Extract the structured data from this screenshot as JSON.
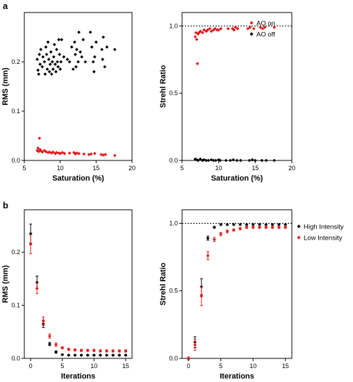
{
  "panel_labels": {
    "a": "a",
    "b": "b"
  },
  "colors": {
    "on": "#e31a1c",
    "off": "#000000",
    "reference": "#000000"
  },
  "chart_data": [
    {
      "id": "a_rms",
      "type": "scatter",
      "title": "",
      "xlabel": "Saturation (%)",
      "ylabel": "RMS (mm)",
      "xlim": [
        5,
        20
      ],
      "ylim": [
        0,
        0.3
      ],
      "xticks": [
        5,
        10,
        15,
        20
      ],
      "yticks": [
        0.0,
        0.1,
        0.2
      ],
      "ytick_labels": [
        "0.0",
        "0.1",
        "0.2"
      ],
      "grid": false,
      "legend": null,
      "series": [
        {
          "color": "#000000",
          "marker": "diamond",
          "points": [
            [
              6.8,
              0.205
            ],
            [
              6.9,
              0.183
            ],
            [
              7.0,
              0.175
            ],
            [
              7.1,
              0.215
            ],
            [
              7.2,
              0.195
            ],
            [
              7.3,
              0.225
            ],
            [
              7.5,
              0.19
            ],
            [
              7.6,
              0.21
            ],
            [
              7.8,
              0.2
            ],
            [
              7.9,
              0.175
            ],
            [
              8.0,
              0.23
            ],
            [
              8.1,
              0.215
            ],
            [
              8.2,
              0.185
            ],
            [
              8.3,
              0.24
            ],
            [
              8.4,
              0.205
            ],
            [
              8.5,
              0.18
            ],
            [
              8.6,
              0.195
            ],
            [
              8.7,
              0.22
            ],
            [
              8.8,
              0.175
            ],
            [
              8.9,
              0.2
            ],
            [
              9.0,
              0.185
            ],
            [
              9.1,
              0.21
            ],
            [
              9.2,
              0.235
            ],
            [
              9.3,
              0.195
            ],
            [
              9.4,
              0.18
            ],
            [
              9.5,
              0.225
            ],
            [
              9.6,
              0.2
            ],
            [
              9.7,
              0.19
            ],
            [
              9.8,
              0.245
            ],
            [
              9.9,
              0.215
            ],
            [
              10.0,
              0.185
            ],
            [
              10.1,
              0.2
            ],
            [
              10.2,
              0.245
            ],
            [
              10.5,
              0.21
            ],
            [
              11.0,
              0.205
            ],
            [
              11.3,
              0.2
            ],
            [
              11.6,
              0.23
            ],
            [
              11.8,
              0.185
            ],
            [
              12.0,
              0.24
            ],
            [
              12.1,
              0.215
            ],
            [
              12.2,
              0.19
            ],
            [
              12.3,
              0.225
            ],
            [
              12.5,
              0.2
            ],
            [
              12.6,
              0.26
            ],
            [
              12.8,
              0.22
            ],
            [
              13.0,
              0.21
            ],
            [
              13.2,
              0.245
            ],
            [
              13.5,
              0.2
            ],
            [
              14.2,
              0.26
            ],
            [
              14.4,
              0.23
            ],
            [
              14.6,
              0.2
            ],
            [
              14.7,
              0.18
            ],
            [
              14.8,
              0.21
            ],
            [
              15.0,
              0.24
            ],
            [
              15.8,
              0.225
            ],
            [
              15.9,
              0.205
            ],
            [
              16.0,
              0.25
            ],
            [
              16.2,
              0.19
            ],
            [
              16.5,
              0.23
            ],
            [
              17.6,
              0.225
            ]
          ]
        },
        {
          "color": "#e31a1c",
          "marker": "diamond",
          "points": [
            [
              6.8,
              0.02
            ],
            [
              6.9,
              0.025
            ],
            [
              7.0,
              0.018
            ],
            [
              7.1,
              0.045
            ],
            [
              7.2,
              0.022
            ],
            [
              7.3,
              0.02
            ],
            [
              7.5,
              0.017
            ],
            [
              7.8,
              0.02
            ],
            [
              8.0,
              0.018
            ],
            [
              8.3,
              0.016
            ],
            [
              8.5,
              0.017
            ],
            [
              8.8,
              0.015
            ],
            [
              9.0,
              0.017
            ],
            [
              9.3,
              0.014
            ],
            [
              9.5,
              0.016
            ],
            [
              9.8,
              0.015
            ],
            [
              10.0,
              0.014
            ],
            [
              10.3,
              0.016
            ],
            [
              10.6,
              0.014
            ],
            [
              11.3,
              0.015
            ],
            [
              11.9,
              0.016
            ],
            [
              12.1,
              0.013
            ],
            [
              12.3,
              0.015
            ],
            [
              12.6,
              0.014
            ],
            [
              13.3,
              0.013
            ],
            [
              14.0,
              0.012
            ],
            [
              14.3,
              0.013
            ],
            [
              14.8,
              0.014
            ],
            [
              15.7,
              0.012
            ],
            [
              16.0,
              0.011
            ],
            [
              16.3,
              0.012
            ],
            [
              17.6,
              0.01
            ]
          ]
        }
      ]
    },
    {
      "id": "a_strehl",
      "type": "scatter",
      "title": "",
      "xlabel": "Saturation (%)",
      "ylabel": "Strehl Ratio",
      "xlim": [
        5,
        20
      ],
      "ylim": [
        0,
        1.1
      ],
      "xticks": [
        5,
        10,
        15,
        20
      ],
      "yticks": [
        0.0,
        0.5,
        1.0
      ],
      "ytick_labels": [
        "0.0",
        "0.5",
        "1.0"
      ],
      "reference_line": 1.0,
      "grid": false,
      "legend": "top-right",
      "series": [
        {
          "name": "AO on",
          "color": "#e31a1c",
          "marker": "diamond",
          "points": [
            [
              6.8,
              0.92
            ],
            [
              6.9,
              0.95
            ],
            [
              7.0,
              0.9
            ],
            [
              7.1,
              0.72
            ],
            [
              7.2,
              0.94
            ],
            [
              7.3,
              0.95
            ],
            [
              7.5,
              0.96
            ],
            [
              7.8,
              0.95
            ],
            [
              8.0,
              0.97
            ],
            [
              8.3,
              0.96
            ],
            [
              8.5,
              0.97
            ],
            [
              8.8,
              0.98
            ],
            [
              9.0,
              0.96
            ],
            [
              9.3,
              0.97
            ],
            [
              9.5,
              0.98
            ],
            [
              9.8,
              0.97
            ],
            [
              10.0,
              0.97
            ],
            [
              10.3,
              0.98
            ],
            [
              11.3,
              0.98
            ],
            [
              11.9,
              0.98
            ],
            [
              12.1,
              0.97
            ],
            [
              12.3,
              0.99
            ],
            [
              12.6,
              0.98
            ],
            [
              14.0,
              0.98
            ],
            [
              14.3,
              0.99
            ],
            [
              14.8,
              0.98
            ],
            [
              15.7,
              0.99
            ],
            [
              16.0,
              0.98
            ],
            [
              16.3,
              0.99
            ],
            [
              17.6,
              0.99
            ]
          ]
        },
        {
          "name": "AO off",
          "color": "#000000",
          "marker": "diamond",
          "points": [
            [
              6.8,
              0.01
            ],
            [
              7.0,
              0.005
            ],
            [
              7.2,
              0.0
            ],
            [
              7.5,
              0.01
            ],
            [
              7.8,
              0.0
            ],
            [
              8.0,
              0.005
            ],
            [
              8.3,
              0.0
            ],
            [
              8.6,
              0.0
            ],
            [
              9.0,
              0.005
            ],
            [
              9.3,
              0.0
            ],
            [
              9.6,
              0.0
            ],
            [
              10.0,
              0.005
            ],
            [
              10.2,
              0.0
            ],
            [
              11.0,
              0.0
            ],
            [
              11.6,
              0.0
            ],
            [
              12.0,
              0.005
            ],
            [
              12.5,
              0.0
            ],
            [
              13.0,
              0.0
            ],
            [
              14.2,
              0.0
            ],
            [
              14.6,
              0.005
            ],
            [
              15.0,
              0.0
            ],
            [
              15.9,
              0.0
            ],
            [
              16.5,
              0.0
            ],
            [
              17.6,
              0.0
            ]
          ]
        }
      ]
    },
    {
      "id": "b_rms",
      "type": "scatter",
      "title": "",
      "xlabel": "Iterations",
      "ylabel": "RMS (mm)",
      "xlim": [
        -1,
        16
      ],
      "ylim": [
        0,
        0.28
      ],
      "xticks": [
        0,
        5,
        10,
        15
      ],
      "yticks": [
        0.0,
        0.1,
        0.2
      ],
      "ytick_labels": [
        "0.0",
        "0.1",
        "0.2"
      ],
      "grid": false,
      "legend": null,
      "series": [
        {
          "color": "#000000",
          "marker": "diamond",
          "x": [
            0,
            1,
            2,
            3,
            4,
            5,
            6,
            7,
            8,
            9,
            10,
            11,
            12,
            13,
            14,
            15
          ],
          "y": [
            0.235,
            0.143,
            0.065,
            0.027,
            0.012,
            0.007,
            0.006,
            0.006,
            0.006,
            0.006,
            0.006,
            0.006,
            0.006,
            0.006,
            0.006,
            0.006
          ],
          "err": [
            0.018,
            0.012,
            0.007,
            0.003,
            0.002,
            0.001,
            0.001,
            0.001,
            0.001,
            0.001,
            0.001,
            0.001,
            0.001,
            0.001,
            0.001,
            0.001
          ]
        },
        {
          "color": "#e31a1c",
          "marker": "diamond",
          "x": [
            0,
            1,
            2,
            3,
            4,
            5,
            6,
            7,
            8,
            9,
            10,
            11,
            12,
            13,
            14,
            15
          ],
          "y": [
            0.215,
            0.132,
            0.07,
            0.042,
            0.026,
            0.02,
            0.017,
            0.016,
            0.015,
            0.015,
            0.015,
            0.014,
            0.014,
            0.014,
            0.014,
            0.014
          ],
          "err": [
            0.018,
            0.01,
            0.008,
            0.004,
            0.003,
            0.002,
            0.002,
            0.002,
            0.002,
            0.002,
            0.002,
            0.002,
            0.002,
            0.002,
            0.002,
            0.002
          ]
        }
      ]
    },
    {
      "id": "b_strehl",
      "type": "scatter",
      "title": "",
      "xlabel": "Iterations",
      "ylabel": "Strehl Ratio",
      "xlim": [
        -1,
        16
      ],
      "ylim": [
        0,
        1.1
      ],
      "xticks": [
        0,
        5,
        10,
        15
      ],
      "yticks": [
        0.0,
        0.5,
        1.0
      ],
      "ytick_labels": [
        "0.0",
        "0.5",
        "1.0"
      ],
      "reference_line": 1.0,
      "grid": false,
      "legend": "top-right",
      "series": [
        {
          "name": "High Intensity",
          "color": "#000000",
          "marker": "diamond",
          "x": [
            0,
            1,
            2,
            3,
            4,
            5,
            6,
            7,
            8,
            9,
            10,
            11,
            12,
            13,
            14,
            15
          ],
          "y": [
            0.0,
            0.12,
            0.53,
            0.89,
            0.97,
            0.99,
            0.99,
            0.99,
            0.99,
            0.99,
            0.99,
            0.99,
            0.99,
            0.99,
            0.99,
            0.99
          ],
          "err": [
            0.01,
            0.04,
            0.06,
            0.015,
            0.006,
            0.004,
            0.002,
            0.002,
            0.002,
            0.002,
            0.002,
            0.002,
            0.002,
            0.002,
            0.002,
            0.002
          ]
        },
        {
          "name": "Low Intensity",
          "color": "#e31a1c",
          "marker": "diamond",
          "x": [
            0,
            1,
            2,
            3,
            4,
            5,
            6,
            7,
            8,
            9,
            10,
            11,
            12,
            13,
            14,
            15
          ],
          "y": [
            0.0,
            0.1,
            0.46,
            0.76,
            0.88,
            0.92,
            0.94,
            0.95,
            0.96,
            0.97,
            0.97,
            0.97,
            0.97,
            0.97,
            0.97,
            0.97
          ],
          "err": [
            0.01,
            0.04,
            0.07,
            0.03,
            0.015,
            0.012,
            0.01,
            0.008,
            0.008,
            0.008,
            0.007,
            0.007,
            0.007,
            0.007,
            0.007,
            0.007
          ]
        }
      ]
    }
  ]
}
